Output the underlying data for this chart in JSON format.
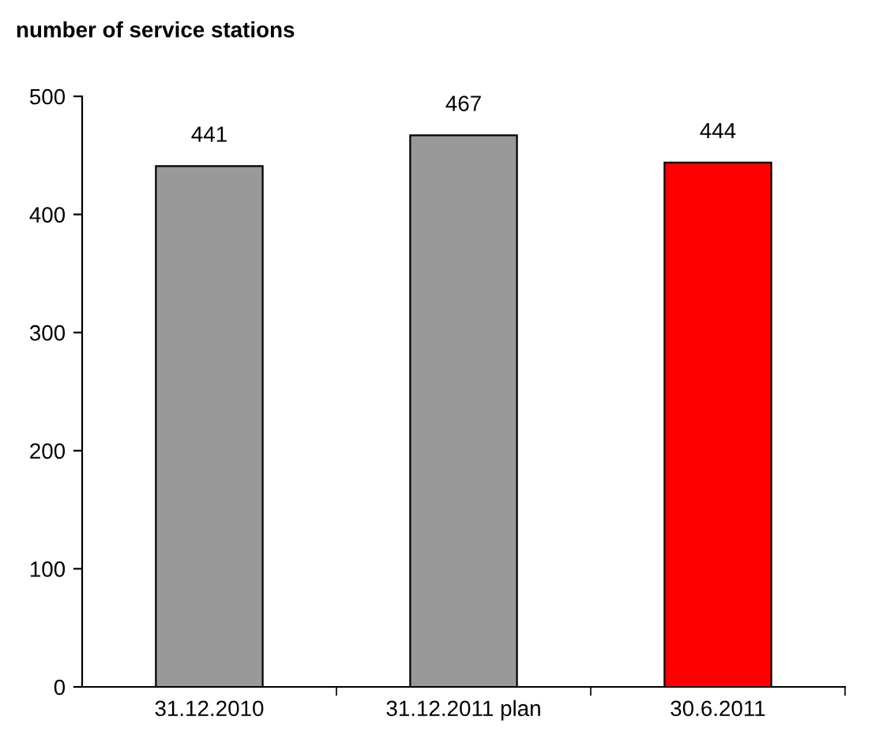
{
  "chart_data": {
    "type": "bar",
    "title": "number of service stations",
    "categories": [
      "31.12.2010",
      "31.12.2011 plan",
      "30.6.2011"
    ],
    "values": [
      441,
      467,
      444
    ],
    "colors": [
      "#999999",
      "#999999",
      "#ff0000"
    ],
    "ylim": [
      0,
      500
    ],
    "yticks": [
      0,
      100,
      200,
      300,
      400,
      500
    ],
    "data_labels": true,
    "grid": false,
    "legend": false
  }
}
